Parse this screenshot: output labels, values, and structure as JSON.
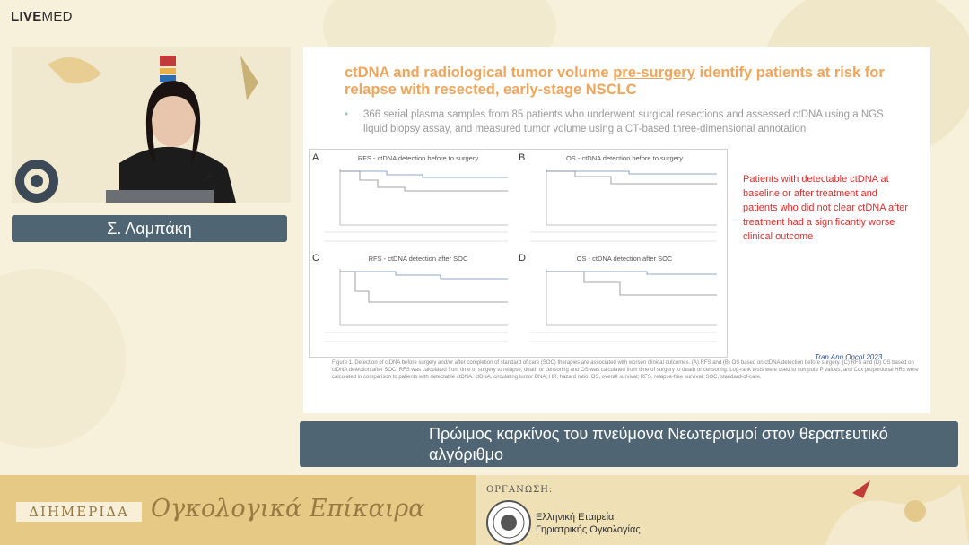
{
  "brand": {
    "bold": "LIVE",
    "rest": "MED"
  },
  "speaker": {
    "name": "Σ. Λαμπάκη"
  },
  "slide": {
    "title_pre": "ctDNA and radiological tumor volume ",
    "title_underlined": "pre-surgery",
    "title_post": " identify patients at risk for relapse with resected, early-stage NSCLC",
    "bullet": "366 serial plasma samples from 85 patients who underwent surgical resections and assessed ctDNA using a NGS liquid biopsy assay, and measured tumor volume using a CT-based three-dimensional annotation",
    "panels": [
      {
        "letter": "A",
        "title": "RFS - ctDNA detection before to surgery"
      },
      {
        "letter": "B",
        "title": "OS - ctDNA detection before to surgery"
      },
      {
        "letter": "C",
        "title": "RFS - ctDNA detection after SOC"
      },
      {
        "letter": "D",
        "title": "OS - ctDNA detection after SOC"
      }
    ],
    "red_note": "Patients with detectable ctDNA at baseline or after treatment and patients who did not clear ctDNA after treatment had a significantly worse clinical outcome",
    "citation": "Tran Ann Oncol 2023",
    "caption": "Figure 1. Detection of ctDNA before surgery and/or after completion of standard of care (SOC) therapies are associated with worsen clinical outcomes. (A) RFS and (B) OS based on ctDNA detection before surgery. (C) RFS and (D) OS based on ctDNA detection after SOC. RFS was calculated from time of surgery to relapse, death or censoring and OS was calculated from time of surgery to death or censoring. Log-rank tests were used to compute P values, and Cox proportional HRs were calculated in comparison to patients with detectable ctDNA. ctDNA, circulating tumor DNA; HR, hazard ratio; OS, overall survival; RFS, relapse-free survival; SOC, standard-of-care."
  },
  "topic": {
    "text": "Πρώιμος καρκίνος του πνεύμονα Νεωτερισμοί στον θεραπευτικό αλγόριθμο"
  },
  "banner": {
    "tag": "ΔΙΗΜΕΡΙΔΑ",
    "title": "Ογκολογικά Επίκαιρα",
    "organizer_label": "ΟΡΓΑΝΩΣΗ:",
    "organizer_line1": "Ελληνική Εταιρεία",
    "organizer_line2": "Γηριατρικής Ογκολογίας"
  },
  "colors": {
    "slide_title": "#f0a55b",
    "red_note": "#e52a2a",
    "bar_bg": "#4f6573",
    "banner_gold": "#e7c986"
  }
}
